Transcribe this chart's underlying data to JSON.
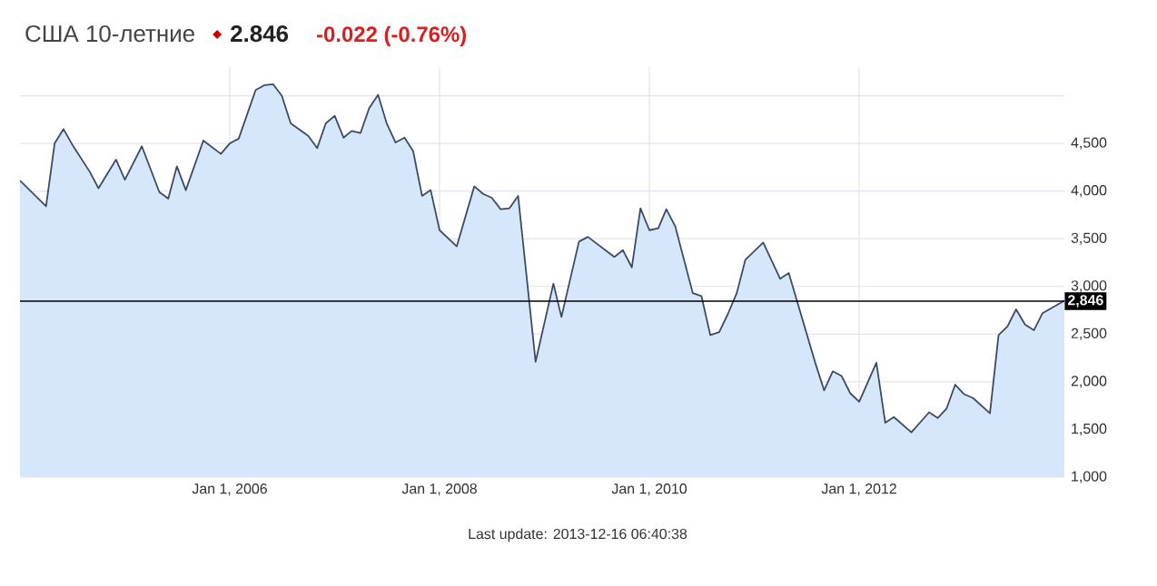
{
  "chart_data": {
    "type": "area",
    "title": "США 10-летние",
    "annotations": [
      "2.846",
      "-0.022 (-0.76%)",
      "Last update: 2013-12-16 06:40:38"
    ],
    "x": [
      "2004-01",
      "2004-04",
      "2004-05",
      "2004-06",
      "2004-07",
      "2004-09",
      "2004-10",
      "2004-12",
      "2005-01",
      "2005-03",
      "2005-05",
      "2005-06",
      "2005-07",
      "2005-08",
      "2005-10",
      "2005-12",
      "2006-01",
      "2006-02",
      "2006-04",
      "2006-05",
      "2006-06",
      "2006-07",
      "2006-08",
      "2006-10",
      "2006-11",
      "2006-12",
      "2007-01",
      "2007-02",
      "2007-03",
      "2007-04",
      "2007-05",
      "2007-06",
      "2007-07",
      "2007-08",
      "2007-09",
      "2007-10",
      "2007-11",
      "2007-12",
      "2008-01",
      "2008-03",
      "2008-05",
      "2008-06",
      "2008-07",
      "2008-08",
      "2008-09",
      "2008-10",
      "2008-12",
      "2009-02",
      "2009-03",
      "2009-05",
      "2009-06",
      "2009-09",
      "2009-10",
      "2009-11",
      "2009-12",
      "2010-01",
      "2010-02",
      "2010-03",
      "2010-04",
      "2010-06",
      "2010-07",
      "2010-08",
      "2010-09",
      "2010-10",
      "2010-11",
      "2010-12",
      "2011-02",
      "2011-04",
      "2011-05",
      "2011-08",
      "2011-09",
      "2011-10",
      "2011-11",
      "2011-12",
      "2012-01",
      "2012-03",
      "2012-04",
      "2012-05",
      "2012-07",
      "2012-09",
      "2012-10",
      "2012-11",
      "2012-12",
      "2013-01",
      "2013-02",
      "2013-04",
      "2013-05",
      "2013-06",
      "2013-07",
      "2013-08",
      "2013-09",
      "2013-10",
      "2013-12-16"
    ],
    "series": [
      {
        "color": "#3c4b64",
        "values": [
          4110,
          3840,
          4500,
          4650,
          4490,
          4200,
          4030,
          4330,
          4120,
          4470,
          3990,
          3920,
          4260,
          4010,
          4530,
          4390,
          4500,
          4550,
          5060,
          5110,
          5120,
          5000,
          4710,
          4580,
          4450,
          4710,
          4790,
          4560,
          4630,
          4610,
          4870,
          5010,
          4710,
          4510,
          4560,
          4420,
          3950,
          4010,
          3590,
          3420,
          4050,
          3970,
          3930,
          3810,
          3820,
          3950,
          2210,
          3030,
          2680,
          3470,
          3520,
          3310,
          3380,
          3200,
          3820,
          3590,
          3610,
          3810,
          3630,
          2930,
          2900,
          2490,
          2520,
          2710,
          2930,
          3280,
          3460,
          3080,
          3140,
          2200,
          1910,
          2110,
          2060,
          1880,
          1790,
          2200,
          1570,
          1630,
          1470,
          1680,
          1620,
          1720,
          1970,
          1870,
          1830,
          1670,
          2490,
          2580,
          2760,
          2600,
          2540,
          2720,
          2850
        ]
      }
    ],
    "xlim": [
      "2004-01-01",
      "2013-12-16"
    ],
    "xticks": [
      {
        "value": "2006-01-01",
        "label": "Jan 1, 2006"
      },
      {
        "value": "2008-01-01",
        "label": "Jan 1, 2008"
      },
      {
        "value": "2010-01-01",
        "label": "Jan 1, 2010"
      },
      {
        "value": "2012-01-01",
        "label": "Jan 1, 2012"
      }
    ],
    "ylim": [
      1000,
      5300
    ],
    "yticks": [
      {
        "value": 1000,
        "label": "1,000"
      },
      {
        "value": 1500,
        "label": "1,500"
      },
      {
        "value": 2000,
        "label": "2,000"
      },
      {
        "value": 2500,
        "label": "2,500"
      },
      {
        "value": 3000,
        "label": "3,000"
      },
      {
        "value": 3500,
        "label": "3,500"
      },
      {
        "value": 4000,
        "label": "4,000"
      },
      {
        "value": 4500,
        "label": "4,500"
      },
      {
        "value": 5000,
        "label": null
      }
    ],
    "ref_lines": [
      {
        "axis": "y",
        "value": 2846,
        "label": "2,846",
        "color": "#000000"
      }
    ],
    "grid": true
  }
}
